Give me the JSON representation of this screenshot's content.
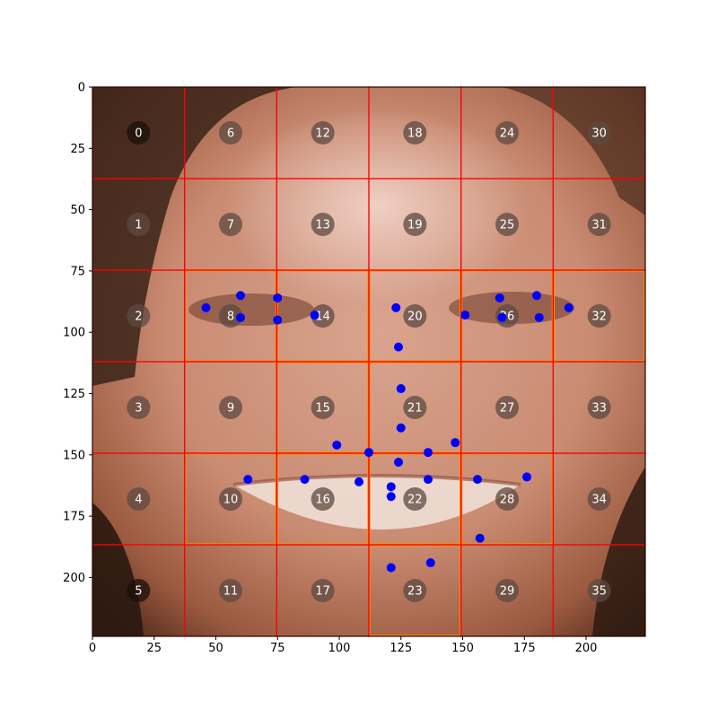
{
  "chart_data": {
    "type": "scatter",
    "xlim": [
      0,
      224
    ],
    "ylim": [
      224,
      0
    ],
    "x_ticks": [
      0,
      25,
      50,
      75,
      100,
      125,
      150,
      175,
      200
    ],
    "y_ticks": [
      0,
      25,
      50,
      75,
      100,
      125,
      150,
      175,
      200
    ],
    "grid_size": 6,
    "cell_labels": [
      "0",
      "1",
      "2",
      "3",
      "4",
      "5",
      "6",
      "7",
      "8",
      "9",
      "10",
      "11",
      "12",
      "13",
      "14",
      "15",
      "16",
      "17",
      "18",
      "19",
      "20",
      "21",
      "22",
      "23",
      "24",
      "25",
      "26",
      "27",
      "28",
      "29",
      "30",
      "31",
      "32",
      "33",
      "34",
      "35"
    ],
    "highlighted_cells": [
      8,
      14,
      20,
      26,
      32,
      10,
      16,
      22,
      28,
      15,
      21,
      23
    ],
    "landmarks": [
      {
        "x": 46,
        "y": 90
      },
      {
        "x": 60,
        "y": 85
      },
      {
        "x": 75,
        "y": 86
      },
      {
        "x": 60,
        "y": 94
      },
      {
        "x": 75,
        "y": 95
      },
      {
        "x": 90,
        "y": 93
      },
      {
        "x": 123,
        "y": 90
      },
      {
        "x": 151,
        "y": 93
      },
      {
        "x": 165,
        "y": 86
      },
      {
        "x": 180,
        "y": 85
      },
      {
        "x": 193,
        "y": 90
      },
      {
        "x": 166,
        "y": 94
      },
      {
        "x": 181,
        "y": 94
      },
      {
        "x": 124,
        "y": 106
      },
      {
        "x": 125,
        "y": 123
      },
      {
        "x": 125,
        "y": 139
      },
      {
        "x": 99,
        "y": 146
      },
      {
        "x": 112,
        "y": 149
      },
      {
        "x": 124,
        "y": 153
      },
      {
        "x": 136,
        "y": 149
      },
      {
        "x": 147,
        "y": 145
      },
      {
        "x": 63,
        "y": 160
      },
      {
        "x": 86,
        "y": 160
      },
      {
        "x": 108,
        "y": 161
      },
      {
        "x": 121,
        "y": 163
      },
      {
        "x": 121,
        "y": 167
      },
      {
        "x": 136,
        "y": 160
      },
      {
        "x": 156,
        "y": 160
      },
      {
        "x": 176,
        "y": 159
      },
      {
        "x": 157,
        "y": 184
      },
      {
        "x": 137,
        "y": 194
      },
      {
        "x": 121,
        "y": 196
      }
    ],
    "colors": {
      "points": "#0000ff",
      "grid": "#ff0000",
      "highlight": "#ff8c00",
      "label_circle": "#5e4a42",
      "label_text": "#ffffff"
    }
  }
}
